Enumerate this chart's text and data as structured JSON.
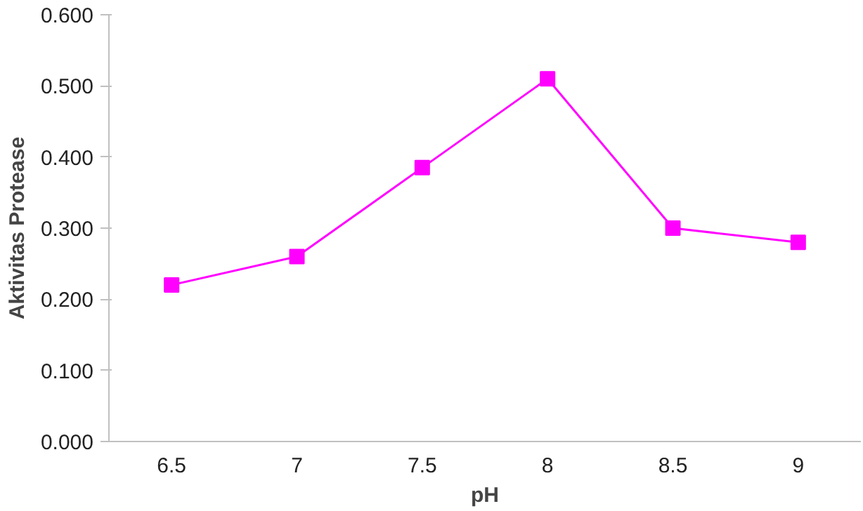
{
  "chart_data": {
    "type": "line",
    "xlabel": "pH",
    "ylabel": "Aktivitas Protease",
    "categories": [
      "6.5",
      "7",
      "7.5",
      "8",
      "8.5",
      "9"
    ],
    "series": [
      {
        "color": "#ff00ff",
        "values": [
          0.22,
          0.26,
          0.385,
          0.51,
          0.3,
          0.28
        ]
      }
    ],
    "ylim": [
      0,
      0.6
    ],
    "yticks": [
      {
        "value": 0,
        "label": "0.000"
      },
      {
        "value": 0.1,
        "label": "0.100"
      },
      {
        "value": 0.2,
        "label": "0.200"
      },
      {
        "value": 0.3,
        "label": "0.300"
      },
      {
        "value": 0.4,
        "label": "0.400"
      },
      {
        "value": 0.5,
        "label": "0.500"
      },
      {
        "value": 0.6,
        "label": "0.600"
      }
    ],
    "marker": "square",
    "grid": false
  }
}
